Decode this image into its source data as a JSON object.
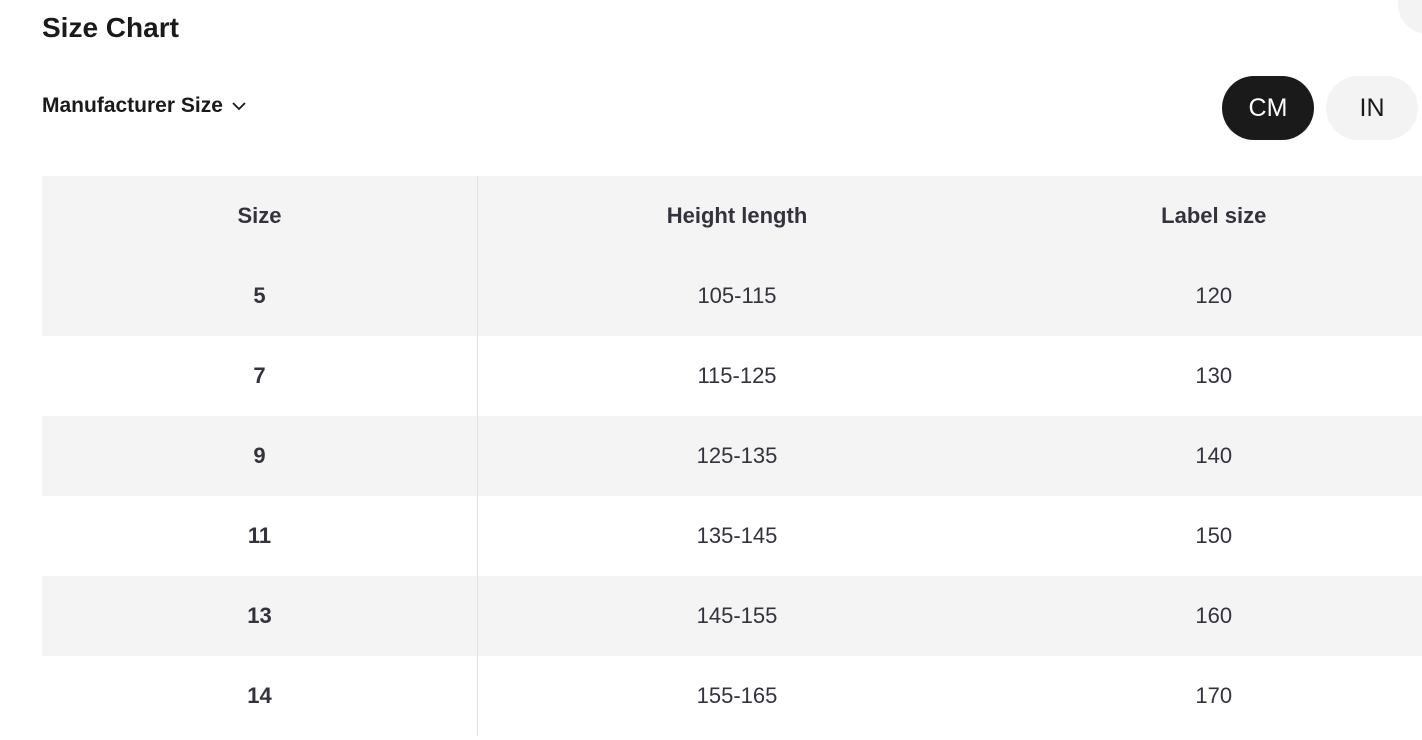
{
  "title": "Size Chart",
  "size_system": {
    "selected": "Manufacturer Size",
    "icon": "chevron-down-icon"
  },
  "units": [
    {
      "label": "CM",
      "active": true
    },
    {
      "label": "IN",
      "active": false
    }
  ],
  "colors": {
    "active_unit_bg": "#1a1a1a",
    "inactive_unit_bg": "#f3f3f3",
    "row_alt_bg": "#f4f4f4"
  },
  "table": {
    "headers": [
      "Size",
      "Height length",
      "Label size"
    ],
    "rows": [
      [
        "5",
        "105-115",
        "120"
      ],
      [
        "7",
        "115-125",
        "130"
      ],
      [
        "9",
        "125-135",
        "140"
      ],
      [
        "11",
        "135-145",
        "150"
      ],
      [
        "13",
        "145-155",
        "160"
      ],
      [
        "14",
        "155-165",
        "170"
      ]
    ]
  }
}
